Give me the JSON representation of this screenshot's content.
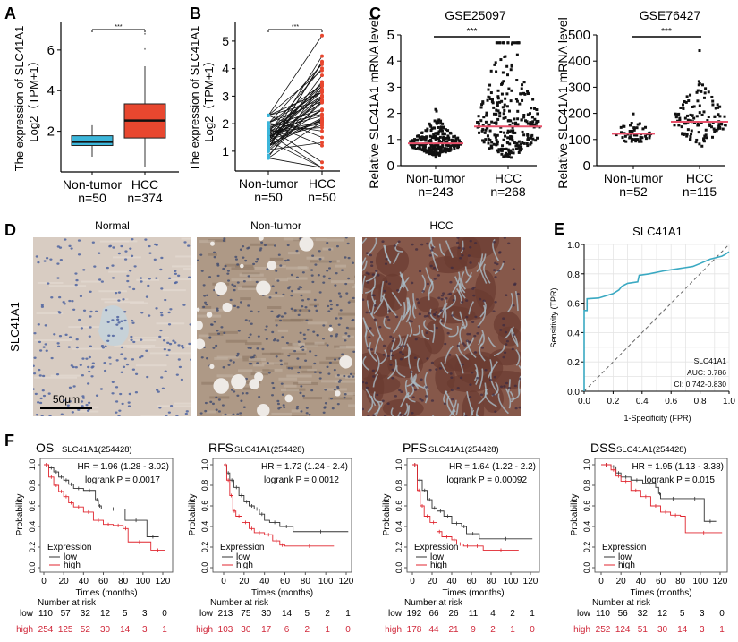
{
  "panel_labels": [
    "A",
    "B",
    "C",
    "D",
    "E",
    "F"
  ],
  "chart_data": [
    {
      "type": "box",
      "ylabel": [
        "The expression of SLC41A1",
        "Log2（TPM+1）"
      ],
      "categories": [
        "Non-tumor",
        "HCC"
      ],
      "n_labels": [
        "n=50",
        "n=374"
      ],
      "significance": "***",
      "yticks": [
        "2",
        "4",
        "6"
      ],
      "ylim": [
        0,
        7.36
      ],
      "colors": [
        "#3cb6da",
        "#e8472f"
      ],
      "boxes": [
        {
          "min": 0.75,
          "q1": 1.3,
          "median": 1.48,
          "q3": 1.78,
          "max": 2.3,
          "outliers": []
        },
        {
          "min": 0.25,
          "q1": 1.67,
          "median": 2.53,
          "q3": 3.35,
          "max": 5.2,
          "outliers": [
            6.05,
            6.8
          ]
        }
      ]
    },
    {
      "type": "paired-dot",
      "ylabel": [
        "The expression of SLC41A1",
        "Log2（TPM+1）"
      ],
      "categories": [
        "Non-tumor",
        "HCC"
      ],
      "n_labels": [
        "n=50",
        "n=50"
      ],
      "significance": "***",
      "yticks": [
        "1",
        "2",
        "3",
        "4",
        "5"
      ],
      "ylim": [
        0.28,
        5.68
      ],
      "colors": [
        "#3cb6da",
        "#e8472f"
      ],
      "groups": [
        {
          "mean": 1.5,
          "sd": 0.35,
          "range": [
            0.75,
            2.3
          ]
        },
        {
          "mean": 2.6,
          "sd": 0.9,
          "range": [
            0.4,
            5.2
          ]
        }
      ]
    },
    {
      "type": "scatter",
      "title": "GSE25097",
      "ylabel": "Relative SLC41A1 mRNA level",
      "categories": [
        "Non-tumor",
        "HCC"
      ],
      "n_labels": [
        "n=243",
        "n=268"
      ],
      "n": [
        243,
        268
      ],
      "significance": "***",
      "yticks": [
        "0",
        "1",
        "2",
        "3",
        "4",
        "5"
      ],
      "ylim": [
        0,
        5
      ],
      "mean_color": "#e8506a",
      "groups": [
        {
          "mean": 0.85,
          "spread": 0.32,
          "range": [
            0.2,
            2.15
          ]
        },
        {
          "mean": 1.5,
          "spread": 0.65,
          "range": [
            0.08,
            4.7
          ]
        }
      ]
    },
    {
      "type": "scatter",
      "title": "GSE76427",
      "ylabel": "Relative SLC41A1 mRNA level",
      "categories": [
        "Non-tumor",
        "HCC"
      ],
      "n_labels": [
        "n=52",
        "n=115"
      ],
      "n": [
        52,
        115
      ],
      "significance": "***",
      "yticks": [
        "0",
        "100",
        "200",
        "300",
        "400",
        "500"
      ],
      "ylim": [
        0,
        500
      ],
      "mean_color": "#e8506a",
      "groups": [
        {
          "mean": 122,
          "spread": 0.18,
          "range": [
            92,
            198
          ]
        },
        {
          "mean": 168,
          "spread": 0.32,
          "range": [
            70,
            440
          ]
        }
      ]
    },
    {
      "type": "line",
      "subtype": "roc",
      "title": "SLC41A1",
      "xlabel": "1-Specificity (FPR)",
      "ylabel": "Sensitivity (TPR)",
      "xticks": [
        "0.0",
        "0.2",
        "0.4",
        "0.6",
        "0.8",
        "1.0"
      ],
      "yticks": [
        "0.0",
        "0.2",
        "0.4",
        "0.6",
        "0.8",
        "1.0"
      ],
      "xlim": [
        0,
        1
      ],
      "ylim": [
        0,
        1
      ],
      "grid": true,
      "legend": [
        "SLC41A1",
        "AUC: 0.786",
        "CI: 0.742-0.830"
      ],
      "legend_position": "bottom-right",
      "color": "#3aa9c2",
      "points": [
        [
          0,
          0
        ],
        [
          0,
          0.55
        ],
        [
          0.02,
          0.55
        ],
        [
          0.02,
          0.63
        ],
        [
          0.1,
          0.635
        ],
        [
          0.15,
          0.65
        ],
        [
          0.2,
          0.665
        ],
        [
          0.24,
          0.69
        ],
        [
          0.26,
          0.715
        ],
        [
          0.3,
          0.735
        ],
        [
          0.37,
          0.745
        ],
        [
          0.38,
          0.79
        ],
        [
          0.45,
          0.8
        ],
        [
          0.55,
          0.82
        ],
        [
          0.65,
          0.835
        ],
        [
          0.75,
          0.85
        ],
        [
          0.8,
          0.87
        ],
        [
          0.87,
          0.9
        ],
        [
          0.95,
          0.92
        ],
        [
          0.97,
          0.93
        ],
        [
          1,
          0.95
        ]
      ]
    },
    {
      "type": "line",
      "subtype": "kaplan-meier",
      "endpoint": "OS",
      "gene": "SLC41A1(254428)",
      "hr": "HR = 1.96 (1.28 - 3.02)",
      "p": "logrank P = 0.0017",
      "xlabel": "Times (months)",
      "ylabel": "Probability",
      "xticks": [
        "0",
        "20",
        "40",
        "60",
        "80",
        "100",
        "120"
      ],
      "yticks": [
        "0.0",
        "0.2",
        "0.4",
        "0.6",
        "0.8",
        "1.0"
      ],
      "xlim": [
        0,
        120
      ],
      "ylim": [
        0,
        1
      ],
      "legend_title": "Expression",
      "legend_position": "bottom-left",
      "series": [
        {
          "name": "low",
          "color": "#333333",
          "points": [
            [
              0,
              1
            ],
            [
              5,
              0.97
            ],
            [
              10,
              0.93
            ],
            [
              15,
              0.88
            ],
            [
              20,
              0.85
            ],
            [
              25,
              0.81
            ],
            [
              30,
              0.77
            ],
            [
              40,
              0.75
            ],
            [
              52,
              0.66
            ],
            [
              55,
              0.6
            ],
            [
              58,
              0.57
            ],
            [
              82,
              0.46
            ],
            [
              104,
              0.3
            ],
            [
              116,
              0.3
            ]
          ]
        },
        {
          "name": "high",
          "color": "#e0262f",
          "points": [
            [
              0,
              1
            ],
            [
              5,
              0.88
            ],
            [
              10,
              0.8
            ],
            [
              15,
              0.74
            ],
            [
              20,
              0.69
            ],
            [
              25,
              0.63
            ],
            [
              30,
              0.59
            ],
            [
              40,
              0.54
            ],
            [
              50,
              0.46
            ],
            [
              60,
              0.42
            ],
            [
              70,
              0.41
            ],
            [
              80,
              0.38
            ],
            [
              85,
              0.25
            ],
            [
              108,
              0.17
            ],
            [
              122,
              0.17
            ]
          ]
        }
      ],
      "risk_title": "Number at risk",
      "risk_times": [
        0,
        20,
        40,
        60,
        80,
        100,
        120
      ],
      "risk": {
        "low": [
          "110",
          "57",
          "32",
          "12",
          "5",
          "3",
          "0"
        ],
        "high": [
          "254",
          "125",
          "52",
          "30",
          "14",
          "3",
          "1"
        ]
      }
    },
    {
      "type": "line",
      "subtype": "kaplan-meier",
      "endpoint": "RFS",
      "gene": "SLC41A1(254428)",
      "hr": "HR = 1.72 (1.24 - 2.4)",
      "p": "logrank P = 0.0012",
      "xlabel": "Times (months)",
      "ylabel": "Probability",
      "xticks": [
        "0",
        "20",
        "40",
        "60",
        "80",
        "100",
        "120"
      ],
      "yticks": [
        "0.0",
        "0.2",
        "0.4",
        "0.6",
        "0.8",
        "1.0"
      ],
      "xlim": [
        0,
        120
      ],
      "ylim": [
        0,
        1
      ],
      "legend_title": "Expression",
      "legend_position": "bottom-left",
      "series": [
        {
          "name": "low",
          "color": "#333333",
          "points": [
            [
              0,
              1
            ],
            [
              3,
              0.92
            ],
            [
              6,
              0.85
            ],
            [
              10,
              0.78
            ],
            [
              15,
              0.7
            ],
            [
              20,
              0.64
            ],
            [
              25,
              0.6
            ],
            [
              30,
              0.57
            ],
            [
              35,
              0.52
            ],
            [
              40,
              0.46
            ],
            [
              45,
              0.44
            ],
            [
              55,
              0.4
            ],
            [
              68,
              0.35
            ],
            [
              122,
              0.35
            ]
          ]
        },
        {
          "name": "high",
          "color": "#e0262f",
          "points": [
            [
              0,
              1
            ],
            [
              3,
              0.85
            ],
            [
              6,
              0.7
            ],
            [
              9,
              0.55
            ],
            [
              12,
              0.5
            ],
            [
              18,
              0.44
            ],
            [
              25,
              0.38
            ],
            [
              30,
              0.34
            ],
            [
              40,
              0.32
            ],
            [
              48,
              0.26
            ],
            [
              55,
              0.22
            ],
            [
              60,
              0.21
            ],
            [
              108,
              0.21
            ]
          ]
        }
      ],
      "risk_title": "Number at risk",
      "risk_times": [
        0,
        20,
        40,
        60,
        80,
        100,
        120
      ],
      "risk": {
        "low": [
          "213",
          "75",
          "30",
          "14",
          "5",
          "2",
          "1"
        ],
        "high": [
          "103",
          "30",
          "17",
          "6",
          "2",
          "1",
          "0"
        ]
      }
    },
    {
      "type": "line",
      "subtype": "kaplan-meier",
      "endpoint": "PFS",
      "gene": "SLC41A1(254428)",
      "hr": "HR = 1.64 (1.22 - 2.2)",
      "p": "logrank P = 0.00092",
      "xlabel": "Times (months)",
      "ylabel": "Probability",
      "xticks": [
        "0",
        "20",
        "40",
        "60",
        "80",
        "100",
        "120"
      ],
      "yticks": [
        "0.0",
        "0.2",
        "0.4",
        "0.6",
        "0.8",
        "1.0"
      ],
      "xlim": [
        0,
        120
      ],
      "ylim": [
        0,
        1
      ],
      "legend_title": "Expression",
      "legend_position": "bottom-left",
      "series": [
        {
          "name": "low",
          "color": "#333333",
          "points": [
            [
              0,
              1
            ],
            [
              5,
              0.85
            ],
            [
              10,
              0.75
            ],
            [
              15,
              0.66
            ],
            [
              20,
              0.58
            ],
            [
              25,
              0.55
            ],
            [
              32,
              0.5
            ],
            [
              40,
              0.43
            ],
            [
              50,
              0.4
            ],
            [
              55,
              0.33
            ],
            [
              68,
              0.28
            ],
            [
              122,
              0.28
            ]
          ]
        },
        {
          "name": "high",
          "color": "#e0262f",
          "points": [
            [
              0,
              1
            ],
            [
              5,
              0.75
            ],
            [
              8,
              0.6
            ],
            [
              12,
              0.5
            ],
            [
              18,
              0.44
            ],
            [
              25,
              0.35
            ],
            [
              30,
              0.3
            ],
            [
              40,
              0.27
            ],
            [
              45,
              0.23
            ],
            [
              52,
              0.21
            ],
            [
              60,
              0.21
            ],
            [
              72,
              0.17
            ],
            [
              108,
              0.17
            ]
          ]
        }
      ],
      "risk_title": "Number at risk",
      "risk_times": [
        0,
        20,
        40,
        60,
        80,
        100,
        120
      ],
      "risk": {
        "low": [
          "192",
          "66",
          "26",
          "11",
          "4",
          "2",
          "1"
        ],
        "high": [
          "178",
          "44",
          "21",
          "9",
          "2",
          "1",
          "0"
        ]
      }
    },
    {
      "type": "line",
      "subtype": "kaplan-meier",
      "endpoint": "DSS",
      "gene": "SLC41A1(254428)",
      "hr": "HR = 1.95 (1.13 - 3.38)",
      "p": "logrank P = 0.015",
      "xlabel": "Times (months)",
      "ylabel": "Probability",
      "xticks": [
        "0",
        "20",
        "40",
        "60",
        "80",
        "100",
        "120"
      ],
      "yticks": [
        "0.0",
        "0.2",
        "0.4",
        "0.6",
        "0.8",
        "1.0"
      ],
      "xlim": [
        0,
        120
      ],
      "ylim": [
        0,
        1
      ],
      "legend_title": "Expression",
      "legend_position": "bottom-left",
      "series": [
        {
          "name": "low",
          "color": "#333333",
          "points": [
            [
              0,
              1
            ],
            [
              10,
              0.98
            ],
            [
              15,
              0.92
            ],
            [
              20,
              0.88
            ],
            [
              30,
              0.85
            ],
            [
              42,
              0.82
            ],
            [
              55,
              0.78
            ],
            [
              58,
              0.72
            ],
            [
              60,
              0.67
            ],
            [
              85,
              0.67
            ],
            [
              104,
              0.45
            ],
            [
              116,
              0.45
            ]
          ]
        },
        {
          "name": "high",
          "color": "#e0262f",
          "points": [
            [
              0,
              1
            ],
            [
              10,
              0.95
            ],
            [
              15,
              0.89
            ],
            [
              20,
              0.84
            ],
            [
              30,
              0.75
            ],
            [
              40,
              0.69
            ],
            [
              50,
              0.6
            ],
            [
              60,
              0.54
            ],
            [
              70,
              0.51
            ],
            [
              80,
              0.5
            ],
            [
              85,
              0.34
            ],
            [
              122,
              0.34
            ]
          ]
        }
      ],
      "risk_title": "Number at risk",
      "risk_times": [
        0,
        20,
        40,
        60,
        80,
        100,
        120
      ],
      "risk": {
        "low": [
          "110",
          "56",
          "32",
          "12",
          "5",
          "3",
          "0"
        ],
        "high": [
          "252",
          "124",
          "51",
          "30",
          "14",
          "3",
          "1"
        ]
      }
    }
  ],
  "panel_d": {
    "titles": [
      "Normal",
      "Non-tumor",
      "HCC"
    ],
    "row_label": "SLC41A1",
    "scale_bar": "50μm",
    "tissue_colors": [
      "#d8ccc2",
      "#ae9986",
      "#86584a"
    ]
  }
}
